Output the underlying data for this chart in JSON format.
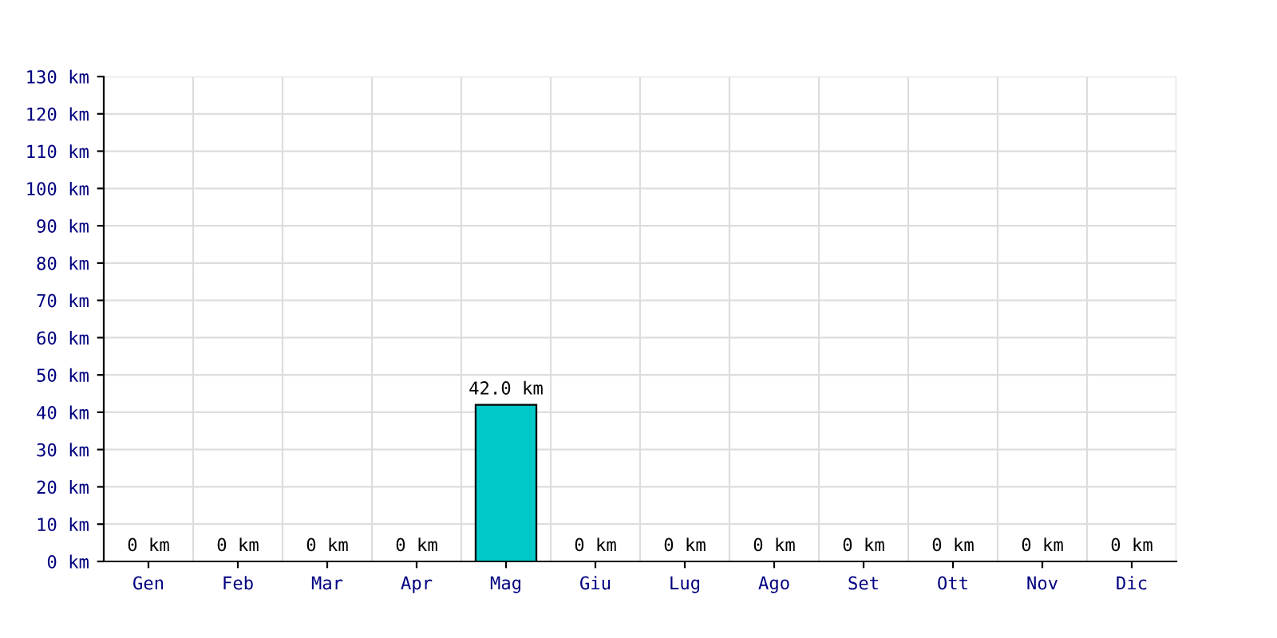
{
  "chart_data": {
    "type": "bar",
    "categories": [
      "Gen",
      "Feb",
      "Mar",
      "Apr",
      "Mag",
      "Giu",
      "Lug",
      "Ago",
      "Set",
      "Ott",
      "Nov",
      "Dic"
    ],
    "values": [
      0,
      0,
      0,
      0,
      42.0,
      0,
      0,
      0,
      0,
      0,
      0,
      0
    ],
    "value_labels": [
      "0 km",
      "0 km",
      "0 km",
      "0 km",
      "42.0 km",
      "0 km",
      "0 km",
      "0 km",
      "0 km",
      "0 km",
      "0 km",
      "0 km"
    ],
    "color": "#00c8c8",
    "ylim": [
      0,
      130
    ],
    "yticks": [
      {
        "value": 0,
        "label": "0 km"
      },
      {
        "value": 10,
        "label": "10 km"
      },
      {
        "value": 20,
        "label": "20 km"
      },
      {
        "value": 30,
        "label": "30 km"
      },
      {
        "value": 40,
        "label": "40 km"
      },
      {
        "value": 50,
        "label": "50 km"
      },
      {
        "value": 60,
        "label": "60 km"
      },
      {
        "value": 70,
        "label": "70 km"
      },
      {
        "value": 80,
        "label": "80 km"
      },
      {
        "value": 90,
        "label": "90 km"
      },
      {
        "value": 100,
        "label": "100 km"
      },
      {
        "value": 110,
        "label": "110 km"
      },
      {
        "value": 120,
        "label": "120 km"
      },
      {
        "value": 130,
        "label": "130 km"
      }
    ],
    "grid": true
  }
}
